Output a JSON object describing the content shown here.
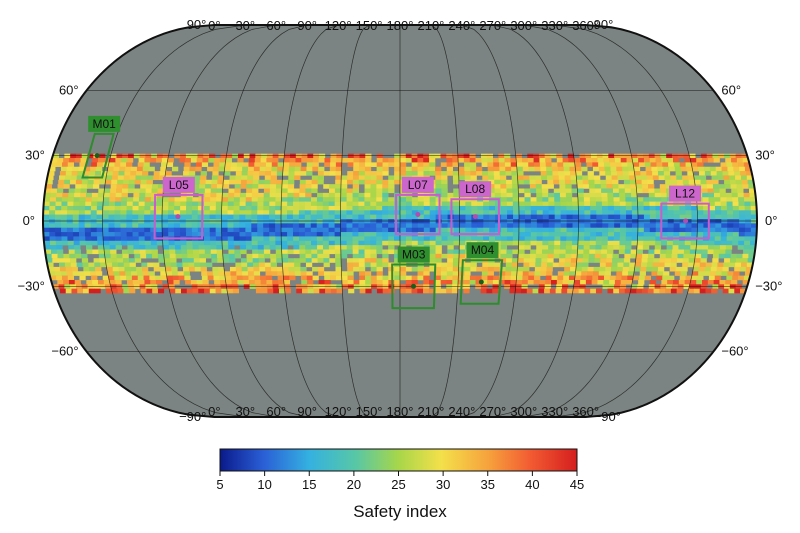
{
  "map": {
    "projection": "Eckert IV (global)",
    "background_color": "#7b8482",
    "band_note": "Continuous color-coded band visible between approximately 30°N and 30°S."
  },
  "graticule": {
    "lon_labels_top": [
      "0°",
      "30°",
      "60°",
      "90°",
      "120°",
      "150°",
      "180°",
      "210°",
      "240°",
      "270°",
      "300°",
      "330°",
      "360°"
    ],
    "lon_labels_bottom": [
      "0°",
      "30°",
      "60°",
      "90°",
      "120°",
      "150°",
      "180°",
      "210°",
      "240°",
      "270°",
      "300°",
      "330°",
      "360°"
    ],
    "lat_labels_left": [
      "90°",
      "60°",
      "30°",
      "0°",
      "−30°",
      "−60°",
      "−90°"
    ],
    "lat_labels_right": [
      "90°",
      "60°",
      "30°",
      "0°",
      "−30°",
      "−60°",
      "−90°"
    ]
  },
  "regions": [
    {
      "id": "M01",
      "type": "M",
      "lon_min": 18,
      "lon_max": 28,
      "lat_min": 20,
      "lat_max": 40,
      "color": "#2e8b2e"
    },
    {
      "id": "L05",
      "type": "L",
      "lon_min": 56,
      "lon_max": 80,
      "lat_min": -8,
      "lat_max": 12,
      "color": "#cc5ccc"
    },
    {
      "id": "L07",
      "type": "L",
      "lon_min": 178,
      "lon_max": 200,
      "lat_min": -6,
      "lat_max": 12,
      "color": "#cc5ccc"
    },
    {
      "id": "L08",
      "type": "L",
      "lon_min": 206,
      "lon_max": 230,
      "lat_min": -6,
      "lat_max": 10,
      "color": "#cc5ccc"
    },
    {
      "id": "L12",
      "type": "L",
      "lon_min": 312,
      "lon_max": 336,
      "lat_min": -8,
      "lat_max": 8,
      "color": "#cc5ccc"
    },
    {
      "id": "M03",
      "type": "M",
      "lon_min": 176,
      "lon_max": 198,
      "lat_min": -40,
      "lat_max": -20,
      "color": "#2e8b2e"
    },
    {
      "id": "M04",
      "type": "M",
      "lon_min": 212,
      "lon_max": 232,
      "lat_min": -38,
      "lat_max": -18,
      "color": "#2e8b2e"
    }
  ],
  "colorbar": {
    "title": "Safety index",
    "ticks": [
      "5",
      "10",
      "15",
      "20",
      "25",
      "30",
      "35",
      "40",
      "45"
    ],
    "min": 5,
    "max": 45,
    "palette": [
      "#0a1a8a",
      "#2a5ed6",
      "#34b1e0",
      "#58c7a6",
      "#a7d64a",
      "#f4e04a",
      "#f6a33d",
      "#f25b32",
      "#d51e1e"
    ]
  }
}
